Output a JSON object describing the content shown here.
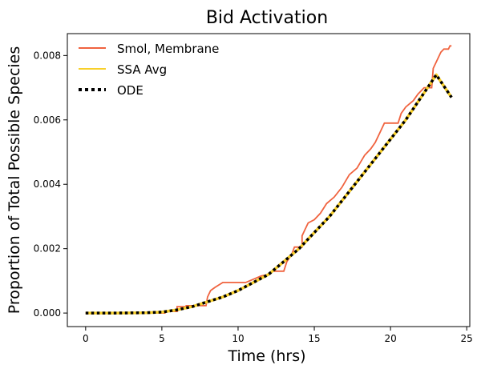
{
  "chart_data": {
    "type": "line",
    "title": "Bid Activation",
    "xlabel": "Time (hrs)",
    "ylabel": "Proportion of Total Possible Species",
    "xlim": [
      -1.2,
      25.2
    ],
    "ylim": [
      -0.00042,
      0.00868
    ],
    "x_ticks": [
      0,
      5,
      10,
      15,
      20,
      25
    ],
    "y_ticks": [
      0.0,
      0.002,
      0.004,
      0.006,
      0.008
    ],
    "y_tick_labels": [
      "0.000",
      "0.002",
      "0.004",
      "0.006",
      "0.008"
    ],
    "grid": false,
    "legend_position": "top-left",
    "series": [
      {
        "name": "Smol, Membrane",
        "color": "#f0633f",
        "style": "step",
        "points": [
          [
            0,
            0
          ],
          [
            5.2,
            0
          ],
          [
            5.2,
            5e-05
          ],
          [
            6.0,
            5e-05
          ],
          [
            6.0,
            0.0002
          ],
          [
            6.6,
            0.0002
          ],
          [
            6.6,
            0.00023
          ],
          [
            7.9,
            0.00023
          ],
          [
            8.0,
            0.0005
          ],
          [
            8.2,
            0.0007
          ],
          [
            8.5,
            0.0008
          ],
          [
            9.0,
            0.00095
          ],
          [
            10.5,
            0.00095
          ],
          [
            11.5,
            0.00115
          ],
          [
            12.0,
            0.0012
          ],
          [
            12.2,
            0.0013
          ],
          [
            13.0,
            0.0013
          ],
          [
            13.2,
            0.0016
          ],
          [
            13.5,
            0.0018
          ],
          [
            13.7,
            0.00205
          ],
          [
            14.2,
            0.00205
          ],
          [
            14.2,
            0.0024
          ],
          [
            14.4,
            0.0026
          ],
          [
            14.6,
            0.0028
          ],
          [
            15.0,
            0.0029
          ],
          [
            15.4,
            0.0031
          ],
          [
            15.8,
            0.0034
          ],
          [
            16.3,
            0.0036
          ],
          [
            16.8,
            0.0039
          ],
          [
            17.3,
            0.0043
          ],
          [
            17.8,
            0.0045
          ],
          [
            18.3,
            0.0049
          ],
          [
            18.7,
            0.0051
          ],
          [
            19.0,
            0.0053
          ],
          [
            19.3,
            0.0056
          ],
          [
            19.6,
            0.0059
          ],
          [
            20.5,
            0.0059
          ],
          [
            20.7,
            0.0062
          ],
          [
            21.0,
            0.0064
          ],
          [
            21.5,
            0.0066
          ],
          [
            21.8,
            0.0068
          ],
          [
            22.2,
            0.007
          ],
          [
            22.7,
            0.007
          ],
          [
            22.8,
            0.0076
          ],
          [
            23.0,
            0.0078
          ],
          [
            23.3,
            0.0081
          ],
          [
            23.5,
            0.0082
          ],
          [
            23.8,
            0.0082
          ],
          [
            23.9,
            0.0083
          ],
          [
            24.0,
            0.0083
          ]
        ]
      },
      {
        "name": "SSA Avg",
        "color": "#f8d02a",
        "style": "line",
        "x": [
          0,
          2,
          4,
          5,
          6,
          7,
          8,
          9,
          10,
          11,
          12,
          13,
          14,
          15,
          16,
          17,
          18,
          19,
          20,
          21,
          22,
          23,
          24
        ],
        "y": [
          0,
          0,
          1e-05,
          3e-05,
          0.0001,
          0.0002,
          0.00035,
          0.0005,
          0.0007,
          0.00095,
          0.0012,
          0.0016,
          0.002,
          0.0025,
          0.003,
          0.0036,
          0.0042,
          0.0048,
          0.0054,
          0.006,
          0.0067,
          0.0074,
          0.0067
        ]
      },
      {
        "name": "ODE",
        "color": "#000000",
        "style": "dotted",
        "x": [
          0,
          2,
          4,
          5,
          6,
          7,
          8,
          9,
          10,
          11,
          12,
          13,
          14,
          15,
          16,
          17,
          18,
          19,
          20,
          21,
          22,
          23,
          24
        ],
        "y": [
          0,
          0,
          1e-05,
          3e-05,
          0.0001,
          0.0002,
          0.00035,
          0.0005,
          0.0007,
          0.00095,
          0.0012,
          0.0016,
          0.002,
          0.0025,
          0.003,
          0.0036,
          0.0042,
          0.0048,
          0.0054,
          0.006,
          0.0067,
          0.0074,
          0.0067
        ]
      }
    ]
  }
}
